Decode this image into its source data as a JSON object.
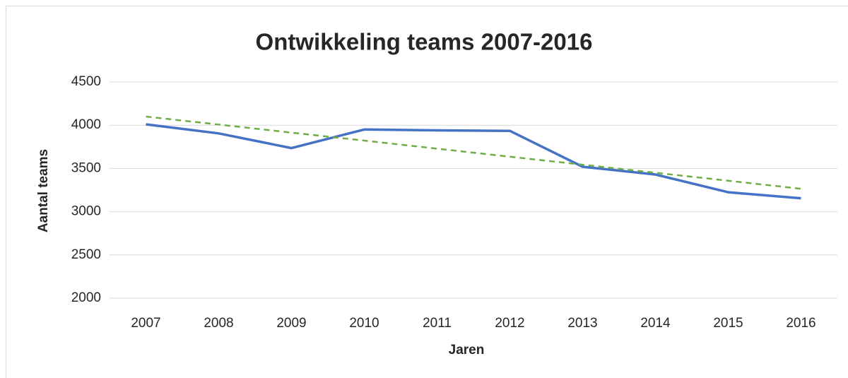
{
  "chart_data": {
    "type": "line",
    "title": "Ontwikkeling teams 2007-2016",
    "xlabel": "Jaren",
    "ylabel": "Aantal teams",
    "categories": [
      "2007",
      "2008",
      "2009",
      "2010",
      "2011",
      "2012",
      "2013",
      "2014",
      "2015",
      "2016"
    ],
    "series": [
      {
        "color": "#4472c4",
        "style": "solid",
        "values": [
          4010,
          3905,
          3735,
          3950,
          3940,
          3935,
          3520,
          3430,
          3225,
          3155
        ]
      },
      {
        "color": "#70ad47",
        "style": "dashed",
        "values": [
          4100,
          4007,
          3914,
          3822,
          3729,
          3636,
          3543,
          3450,
          3358,
          3265
        ]
      }
    ],
    "ylim": [
      2000,
      4500
    ],
    "yticks": [
      2000,
      2500,
      3000,
      3500,
      4000,
      4500
    ],
    "grid": true
  }
}
